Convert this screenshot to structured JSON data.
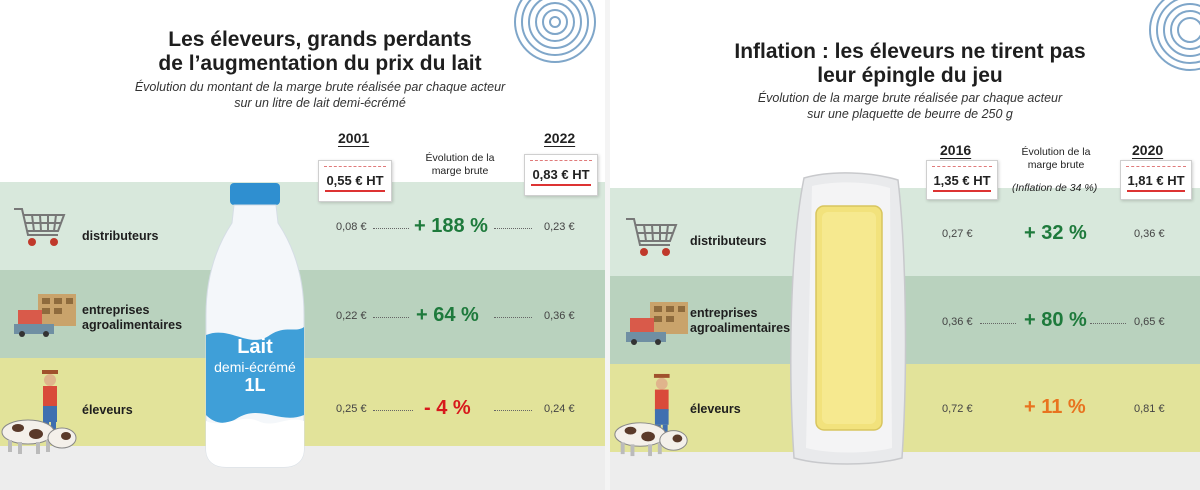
{
  "colors": {
    "positive": "#1e7a3c",
    "negative": "#d7191c",
    "moderate": "#e8731f",
    "band_distributeurs": "#d8e8dc",
    "band_entreprises": "#b9d2be",
    "band_eleveurs": "#e2e39a",
    "bottle_accent": "#3f9fd8",
    "butter": "#f2e27c"
  },
  "left": {
    "title_line1": "Les éleveurs, grands perdants",
    "title_line2": "de l’augmentation du prix du lait",
    "subtitle_line1": "Évolution du montant de la marge brute réalisée par chaque acteur",
    "subtitle_line2": "sur un litre de lait demi-écrémé",
    "bottle": {
      "line1": "Lait",
      "line2": "demi-écrémé",
      "line3": "1L"
    }
  },
  "right": {
    "title_line1": "Inflation : les éleveurs ne tirent pas",
    "title_line2": "leur épingle du jeu",
    "subtitle_line1": "Évolution de la marge brute réalisée par chaque acteur",
    "subtitle_line2": "sur une plaquette  de beurre de 250 g"
  },
  "chart_data": [
    {
      "type": "table",
      "title": "Les éleveurs, grands perdants de l’augmentation du prix du lait",
      "subtitle": "Évolution du montant de la marge brute réalisée par chaque acteur sur un litre de lait demi-écrémé",
      "year_start": "2001",
      "year_end": "2022",
      "price_start": "0,55 € HT",
      "price_end": "0,83 € HT",
      "evolution_header_line1": "Évolution de la",
      "evolution_header_line2": "marge brute",
      "evolution_note": "",
      "rows": [
        {
          "label_line1": "distributeurs",
          "label_line2": "",
          "start": "0,08 €",
          "evolution": "+ 188 %",
          "evolution_value": 188,
          "end": "0,23 €",
          "icon": "shopping-cart-icon"
        },
        {
          "label_line1": "entreprises",
          "label_line2": "agroalimentaires",
          "start": "0,22 €",
          "evolution": "+ 64 %",
          "evolution_value": 64,
          "end": "0,36 €",
          "icon": "factory-icon"
        },
        {
          "label_line1": "éleveurs",
          "label_line2": "",
          "start": "0,25 €",
          "evolution": "- 4 %",
          "evolution_value": -4,
          "end": "0,24 €",
          "icon": "farmer-cows-icon"
        }
      ]
    },
    {
      "type": "table",
      "title": "Inflation : les éleveurs ne tirent pas leur épingle du jeu",
      "subtitle": "Évolution de la marge brute réalisée par chaque acteur sur une plaquette  de beurre de 250 g",
      "year_start": "2016",
      "year_end": "2020",
      "price_start": "1,35 € HT",
      "price_end": "1,81 € HT",
      "evolution_header_line1": "Évolution de la",
      "evolution_header_line2": "marge brute",
      "evolution_note": "(Inflation de 34 %)",
      "rows": [
        {
          "label_line1": "distributeurs",
          "label_line2": "",
          "start": "0,27 €",
          "evolution": "+ 32 %",
          "evolution_value": 32,
          "end": "0,36 €",
          "icon": "shopping-cart-icon"
        },
        {
          "label_line1": "entreprises",
          "label_line2": "agroalimentaires",
          "start": "0,36 €",
          "evolution": "+ 80 %",
          "evolution_value": 80,
          "end": "0,65 €",
          "icon": "factory-icon"
        },
        {
          "label_line1": "éleveurs",
          "label_line2": "",
          "start": "0,72 €",
          "evolution": "+ 11 %",
          "evolution_value": 11,
          "end": "0,81 €",
          "icon": "farmer-cows-icon"
        }
      ]
    }
  ]
}
